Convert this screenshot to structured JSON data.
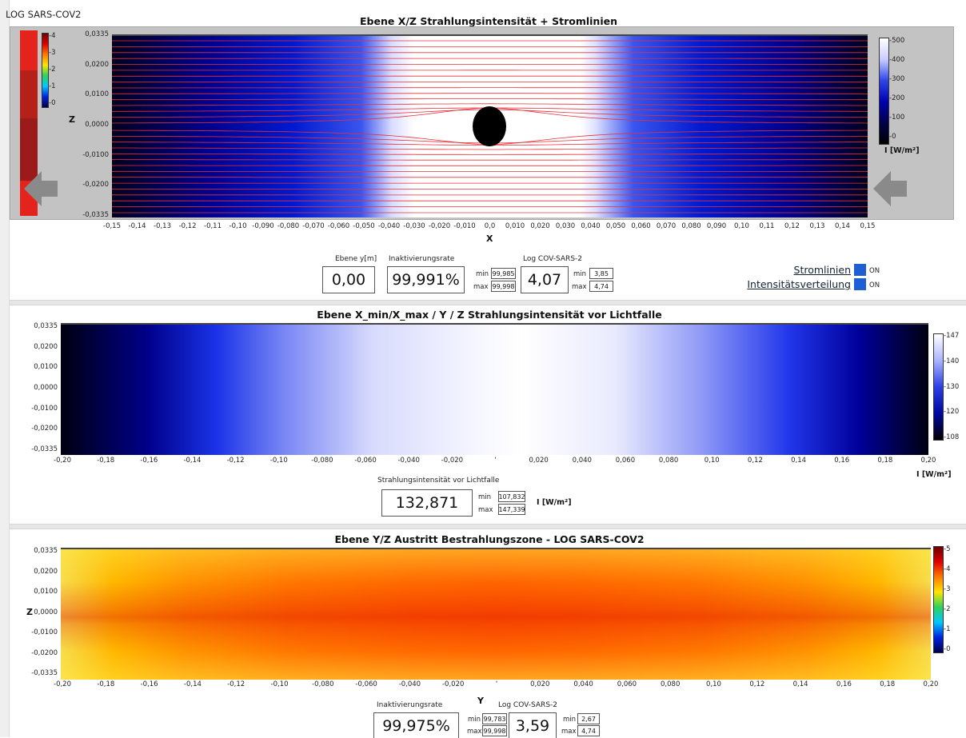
{
  "app_title": "LOG SARS-COV2",
  "panel1": {
    "title": "Ebene X/Z  Strahlungsintensität + Stromlinien",
    "z_label": "Z",
    "x_label": "X",
    "y_ticks": [
      "0,0335",
      "0,0200",
      "0,0100",
      "0,0000",
      "-0,0100",
      "-0,0200",
      "-0,0335"
    ],
    "x_ticks": [
      "-0,15",
      "-0,14",
      "-0,13",
      "-0,12",
      "-0,11",
      "-0,10",
      "-0,090",
      "-0,080",
      "-0,070",
      "-0,060",
      "-0,050",
      "-0,040",
      "-0,030",
      "-0,020",
      "-0,010",
      "0,0",
      "0,010",
      "0,020",
      "0,030",
      "0,040",
      "0,050",
      "0,060",
      "0,070",
      "0,080",
      "0,090",
      "0,10",
      "0,11",
      "0,12",
      "0,13",
      "0,14",
      "0,15"
    ],
    "left_scale_ticks": [
      "4",
      "3",
      "2",
      "1",
      "0"
    ],
    "right_scale_ticks": [
      "500",
      "400",
      "300",
      "200",
      "100",
      "0"
    ],
    "right_scale_unit": "I [W/m²]",
    "ebene_label": "Ebene y[m]",
    "ebene_value": "0,00",
    "inakt_label": "Inaktivierungsrate",
    "inakt_value": "99,991%",
    "inakt_min": "99,985",
    "inakt_max": "99,998",
    "log_label": "Log COV-SARS-2",
    "log_value": "4,07",
    "log_min": "3,85",
    "log_max": "4,74",
    "min_text": "min",
    "max_text": "max",
    "toggle1_label": "Stromlinien",
    "toggle2_label": "Intensitätsverteilung",
    "on_text": "ON"
  },
  "panel2": {
    "title": "Ebene X_min/X_max / Y / Z  Strahlungsintensität vor Lichtfalle",
    "y_ticks": [
      "0,0335",
      "0,0200",
      "0,0100",
      "0,0000",
      "-0,0100",
      "-0,0200",
      "-0,0335"
    ],
    "x_ticks": [
      "-0,20",
      "-0,18",
      "-0,16",
      "-0,14",
      "-0,12",
      "-0,10",
      "-0,080",
      "-0,060",
      "-0,040",
      "-0,020",
      "",
      "0,020",
      "0,040",
      "0,060",
      "0,080",
      "0,10",
      "0,12",
      "0,14",
      "0,16",
      "0,18",
      "0,20"
    ],
    "scale_ticks": [
      "147",
      "140",
      "130",
      "120",
      "108"
    ],
    "scale_unit": "I [W/m²]",
    "value_label": "Strahlungsintensität vor Lichtfalle",
    "value": "132,871",
    "min": "107,832",
    "max": "147,339",
    "unit": "I [W/m²]"
  },
  "panel3": {
    "title": "Ebene Y/Z Austritt Bestrahlungszone - LOG SARS-COV2",
    "z_label": "Z",
    "y_label": "Y",
    "y_ticks": [
      "0,0335",
      "0,0200",
      "0,0100",
      "0,0000",
      "-0,0100",
      "-0,0200",
      "-0,0335"
    ],
    "x_ticks": [
      "-0,20",
      "-0,18",
      "-0,16",
      "-0,14",
      "-0,12",
      "-0,10",
      "-0,080",
      "-0,060",
      "-0,040",
      "-0,020",
      "",
      "0,020",
      "0,040",
      "0,060",
      "0,080",
      "0,10",
      "0,12",
      "0,14",
      "0,16",
      "0,18",
      "0,20"
    ],
    "scale_ticks": [
      "5",
      "4",
      "3",
      "2",
      "1",
      "0"
    ],
    "inakt_label": "Inaktivierungsrate",
    "inakt_value": "99,975%",
    "inakt_min": "99,783",
    "inakt_max": "99,998",
    "log_label": "Log COV-SARS-2",
    "log_value": "3,59",
    "log_min": "2,67",
    "log_max": "4,74"
  }
}
